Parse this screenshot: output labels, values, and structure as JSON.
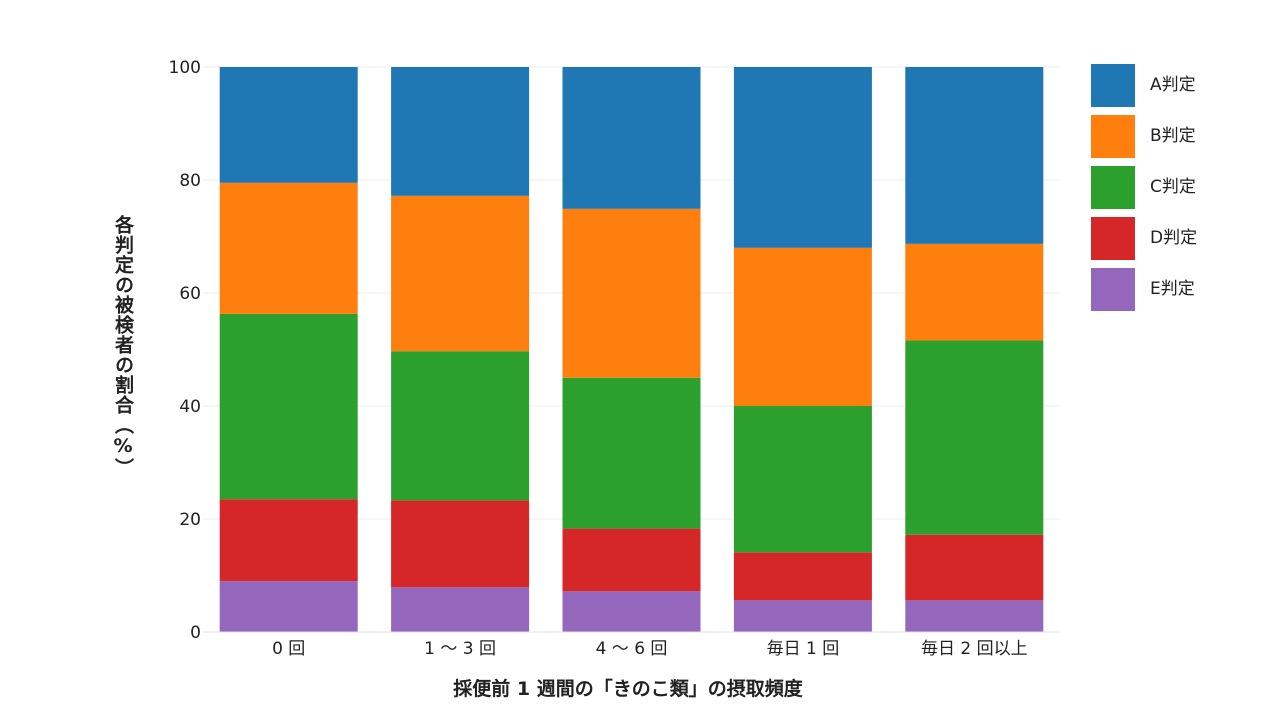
{
  "chart_data": {
    "type": "bar",
    "stacked": true,
    "categories": [
      "0 回",
      "1 ～ 3 回",
      "4 ～ 6 回",
      "毎日 1 回",
      "毎日 2 回以上"
    ],
    "series": [
      {
        "name": "E判定",
        "color": "#9467bd",
        "values": [
          9.0,
          7.9,
          7.2,
          5.6,
          5.6
        ]
      },
      {
        "name": "D判定",
        "color": "#d62728",
        "values": [
          14.5,
          15.4,
          11.1,
          8.5,
          11.6
        ]
      },
      {
        "name": "C判定",
        "color": "#2ca02c",
        "values": [
          32.8,
          26.4,
          26.7,
          25.9,
          34.4
        ]
      },
      {
        "name": "B判定",
        "color": "#ff7f0e",
        "values": [
          23.2,
          27.5,
          29.9,
          28.0,
          17.1
        ]
      },
      {
        "name": "A判定",
        "color": "#1f77b4",
        "values": [
          20.5,
          22.8,
          25.1,
          32.0,
          31.3
        ]
      }
    ],
    "legend_order": [
      "A判定",
      "B判定",
      "C判定",
      "D判定",
      "E判定"
    ],
    "xlabel": "採便前 1 週間の「きのこ類」の摂取頻度",
    "ylabel": "各判定の被検者の割合（%）",
    "ylim": [
      0,
      100
    ],
    "yticks": [
      0,
      20,
      40,
      60,
      80,
      100
    ],
    "grid": true,
    "legend_position": "top-right"
  }
}
